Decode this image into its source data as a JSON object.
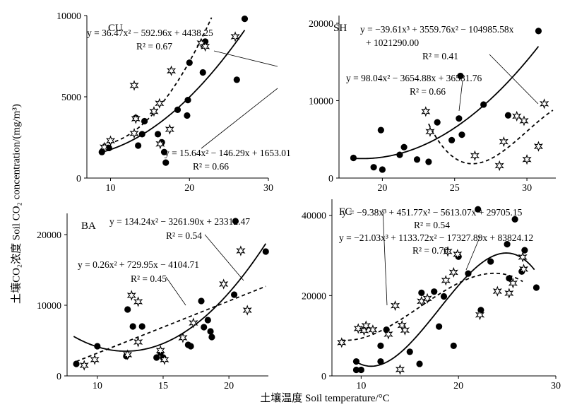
{
  "figure": {
    "ylabel": "土壤CO₂浓度 Soil CO₂ concentration/(mg/m³)",
    "xlabel": "土壤温度 Soil temperature/°C"
  },
  "chart_data": [
    {
      "panel": "CU",
      "type": "scatter",
      "xlim": [
        7,
        30
      ],
      "ylim": [
        0,
        10000
      ],
      "xticks": [
        10,
        20,
        30
      ],
      "yticks": [
        0,
        5000,
        10000
      ],
      "xtick_labels": [
        "10",
        "20",
        "30"
      ],
      "ytick_labels": [
        "0",
        "5000",
        "10000"
      ],
      "series": [
        {
          "marker": "circle",
          "fit": "solid",
          "points": [
            [
              8.9,
              1600
            ],
            [
              9.8,
              1850
            ],
            [
              13.2,
              3700
            ],
            [
              13.5,
              2000
            ],
            [
              14,
              2700
            ],
            [
              14.3,
              3500
            ],
            [
              16,
              2700
            ],
            [
              16.5,
              2200
            ],
            [
              16.8,
              1600
            ],
            [
              17,
              950
            ],
            [
              18.5,
              4200
            ],
            [
              19.7,
              3850
            ],
            [
              19.8,
              4800
            ],
            [
              20,
              7100
            ],
            [
              21.7,
              6500
            ],
            [
              21.8,
              8300
            ],
            [
              22,
              8400
            ],
            [
              26,
              6050
            ],
            [
              27,
              9800
            ]
          ],
          "equation": [
            "y = 15.64x² − 146.29x + 1653.01",
            "R² = 0.66"
          ]
        },
        {
          "marker": "star",
          "fit": "dashed",
          "points": [
            [
              9.2,
              1900
            ],
            [
              10,
              2300
            ],
            [
              13,
              2750
            ],
            [
              13,
              5700
            ],
            [
              13.2,
              3650
            ],
            [
              15.5,
              4100
            ],
            [
              16.2,
              4600
            ],
            [
              16.3,
              2100
            ],
            [
              17.5,
              3000
            ],
            [
              17.7,
              6600
            ],
            [
              21.5,
              8300
            ],
            [
              22,
              8100
            ],
            [
              25.8,
              8700
            ]
          ],
          "equation": [
            "y = 36.47x² − 592.96x + 4438.25",
            "R² = 0.67"
          ]
        }
      ]
    },
    {
      "panel": "SH",
      "type": "scatter",
      "xlim": [
        17,
        32
      ],
      "ylim": [
        0,
        21000
      ],
      "xticks": [
        20,
        25,
        30
      ],
      "yticks": [
        0,
        10000,
        20000
      ],
      "xtick_labels": [
        "20",
        "25",
        "30"
      ],
      "ytick_labels": [
        "0",
        "10000",
        "20000"
      ],
      "series": [
        {
          "marker": "circle",
          "fit": "solid",
          "points": [
            [
              18,
              2600
            ],
            [
              19.4,
              1400
            ],
            [
              19.9,
              6200
            ],
            [
              20,
              1100
            ],
            [
              21.2,
              3000
            ],
            [
              21.5,
              4000
            ],
            [
              22.4,
              2400
            ],
            [
              23.2,
              2100
            ],
            [
              23.8,
              7200
            ],
            [
              24.8,
              4900
            ],
            [
              25.3,
              7700
            ],
            [
              25.5,
              5600
            ],
            [
              25.4,
              13200
            ],
            [
              27,
              9500
            ],
            [
              28.7,
              8100
            ],
            [
              30.8,
              19000
            ]
          ],
          "equation": [
            "y = 98.04x² − 3654.88x + 36581.76",
            "R² = 0.66"
          ]
        },
        {
          "marker": "star",
          "fit": "dashed",
          "points": [
            [
              23,
              8600
            ],
            [
              23.3,
              6000
            ],
            [
              26.4,
              2900
            ],
            [
              28.1,
              1600
            ],
            [
              28.4,
              4700
            ],
            [
              29.3,
              8000
            ],
            [
              29.8,
              7400
            ],
            [
              30,
              2400
            ],
            [
              30.8,
              4100
            ],
            [
              31.2,
              9600
            ]
          ],
          "equation": [
            "y = −39.61x³ + 3559.76x² − 104985.58x + 1021290.00",
            "R² = 0.41"
          ]
        }
      ]
    },
    {
      "panel": "BA",
      "type": "scatter",
      "xlim": [
        7.7,
        23
      ],
      "ylim": [
        0,
        23000
      ],
      "xticks": [
        10,
        15,
        20
      ],
      "yticks": [
        0,
        10000,
        20000
      ],
      "xtick_labels": [
        "10",
        "15",
        "20"
      ],
      "ytick_labels": [
        "0",
        "10000",
        "20000"
      ],
      "series": [
        {
          "marker": "circle",
          "fit": "solid",
          "points": [
            [
              8.4,
              1700
            ],
            [
              10,
              4200
            ],
            [
              12.2,
              2800
            ],
            [
              12.3,
              9400
            ],
            [
              12.7,
              7000
            ],
            [
              13.4,
              7000
            ],
            [
              14.5,
              2600
            ],
            [
              14.8,
              3300
            ],
            [
              15,
              2600
            ],
            [
              16.9,
              4400
            ],
            [
              17.1,
              4200
            ],
            [
              17.9,
              10600
            ],
            [
              18.1,
              6900
            ],
            [
              18.4,
              7900
            ],
            [
              18.6,
              6300
            ],
            [
              18.7,
              5500
            ],
            [
              20.4,
              11500
            ],
            [
              20.5,
              21900
            ],
            [
              22.8,
              17600
            ]
          ],
          "equation": [
            "y = 134.24x² − 3261.90x + 23312.47",
            "R² = 0.54"
          ]
        },
        {
          "marker": "star",
          "fit": "dashed",
          "points": [
            [
              9,
              1500
            ],
            [
              9.8,
              2300
            ],
            [
              12.3,
              3000
            ],
            [
              12.6,
              11400
            ],
            [
              13.1,
              10500
            ],
            [
              13.1,
              4800
            ],
            [
              14.8,
              3600
            ],
            [
              15.1,
              2300
            ],
            [
              16.5,
              5400
            ],
            [
              17.3,
              7500
            ],
            [
              19.6,
              13000
            ],
            [
              20.9,
              17700
            ],
            [
              21.4,
              9300
            ]
          ],
          "equation": [
            "y = 0.26x² + 729.95x − 4104.71",
            "R² = 0.45"
          ]
        }
      ]
    },
    {
      "panel": "FC",
      "type": "scatter",
      "xlim": [
        7,
        30
      ],
      "ylim": [
        0,
        44000
      ],
      "xticks": [
        10,
        20,
        30
      ],
      "yticks": [
        0,
        20000,
        40000
      ],
      "xtick_labels": [
        "10",
        "20",
        "30"
      ],
      "ytick_labels": [
        "0",
        "20000",
        "40000"
      ],
      "series": [
        {
          "marker": "circle",
          "fit": "solid",
          "points": [
            [
              9.5,
              3600
            ],
            [
              9.5,
              1500
            ],
            [
              10,
              1500
            ],
            [
              12,
              3600
            ],
            [
              12,
              7500
            ],
            [
              12.6,
              11500
            ],
            [
              15,
              6000
            ],
            [
              16,
              3000
            ],
            [
              16.2,
              20700
            ],
            [
              17.5,
              21000
            ],
            [
              18,
              12300
            ],
            [
              18.5,
              19800
            ],
            [
              19.5,
              7500
            ],
            [
              20,
              29700
            ],
            [
              21,
              25500
            ],
            [
              22,
              41500
            ],
            [
              22.3,
              16400
            ],
            [
              23.3,
              28500
            ],
            [
              25,
              32800
            ],
            [
              25.2,
              24300
            ],
            [
              25.8,
              39000
            ],
            [
              26.5,
              26000
            ],
            [
              26.8,
              31300
            ],
            [
              28,
              22000
            ]
          ],
          "equation": [
            "y = −21.03x³ + 1133.72x² − 17327.89x + 83824.12",
            "R² = 0.70"
          ]
        },
        {
          "marker": "star",
          "fit": "dashed",
          "points": [
            [
              8,
              8300
            ],
            [
              9.7,
              11800
            ],
            [
              10.3,
              11300
            ],
            [
              10.5,
              12500
            ],
            [
              11.2,
              11500
            ],
            [
              12.8,
              10400
            ],
            [
              13.5,
              17500
            ],
            [
              14,
              1600
            ],
            [
              14.2,
              12600
            ],
            [
              14.5,
              11400
            ],
            [
              16.2,
              18600
            ],
            [
              16.8,
              19300
            ],
            [
              18.7,
              23800
            ],
            [
              18.9,
              31000
            ],
            [
              19.5,
              25800
            ],
            [
              19.9,
              30300
            ],
            [
              22.2,
              15200
            ],
            [
              24,
              21100
            ],
            [
              25.2,
              20600
            ],
            [
              25.6,
              23100
            ],
            [
              26.6,
              29600
            ],
            [
              26.7,
              26600
            ]
          ],
          "equation": [
            "y = −9.38x³ + 451.77x² − 5613.07x + 29705.15",
            "R² = 0.54"
          ]
        }
      ]
    }
  ]
}
